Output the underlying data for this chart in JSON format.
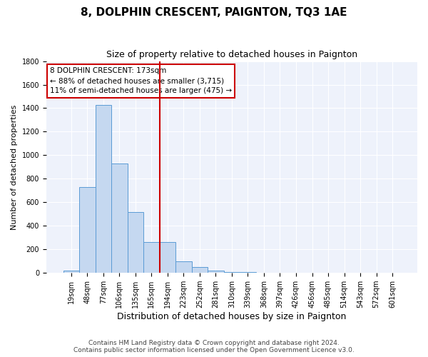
{
  "title": "8, DOLPHIN CRESCENT, PAIGNTON, TQ3 1AE",
  "subtitle": "Size of property relative to detached houses in Paignton",
  "xlabel": "Distribution of detached houses by size in Paignton",
  "ylabel": "Number of detached properties",
  "footer_line1": "Contains HM Land Registry data © Crown copyright and database right 2024.",
  "footer_line2": "Contains public sector information licensed under the Open Government Licence v3.0.",
  "bar_labels": [
    "19sqm",
    "48sqm",
    "77sqm",
    "106sqm",
    "135sqm",
    "165sqm",
    "194sqm",
    "223sqm",
    "252sqm",
    "281sqm",
    "310sqm",
    "339sqm",
    "368sqm",
    "397sqm",
    "426sqm",
    "456sqm",
    "485sqm",
    "514sqm",
    "543sqm",
    "572sqm",
    "601sqm"
  ],
  "bar_values": [
    20,
    730,
    1430,
    930,
    520,
    260,
    260,
    100,
    50,
    20,
    5,
    5,
    3,
    3,
    2,
    2,
    1,
    0,
    0,
    0,
    0
  ],
  "bar_color": "#c5d8f0",
  "bar_edge_color": "#5b9bd5",
  "red_line_x": 5.5,
  "red_line_color": "#cc0000",
  "ylim": [
    0,
    1800
  ],
  "annotation_text": "8 DOLPHIN CRESCENT: 173sqm\n← 88% of detached houses are smaller (3,715)\n11% of semi-detached houses are larger (475) →",
  "annotation_box_color": "#ffffff",
  "annotation_box_edge": "#cc0000",
  "title_fontsize": 11,
  "subtitle_fontsize": 9,
  "tick_fontsize": 7,
  "ylabel_fontsize": 8,
  "xlabel_fontsize": 9,
  "annotation_fontsize": 7.5,
  "footer_fontsize": 6.5,
  "background_color": "#ffffff",
  "plot_bg_color": "#eef2fb"
}
